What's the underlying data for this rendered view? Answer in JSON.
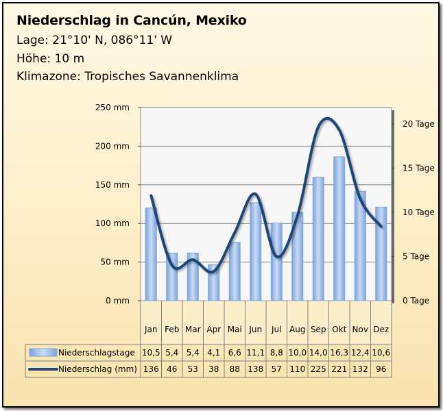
{
  "header": {
    "title": "Niederschlag in Cancún, Mexiko",
    "location": "Lage: 21°10' N, 086°11' W",
    "elevation": "Höhe: 10 m",
    "climate_zone": "Klimazone: Tropisches Savannenklima"
  },
  "colors": {
    "bar": "#9dbde8",
    "bar_edge": "#7ea4db",
    "line": "#1f4778",
    "grid": "#7f7f7f",
    "plot_bg": "#f7f7f7"
  },
  "chart_data": {
    "type": "bar",
    "title": "Niederschlag in Cancún, Mexiko",
    "categories": [
      "Jan",
      "Feb",
      "Mar",
      "Apr",
      "Mai",
      "Jun",
      "Jul",
      "Aug",
      "Sep",
      "Okt",
      "Nov",
      "Dez"
    ],
    "series": [
      {
        "name": "Niederschlagstage",
        "type": "bar",
        "axis": "right",
        "display": [
          "10,5",
          "5,4",
          "5,4",
          "4,1",
          "6,6",
          "11,1",
          "8,8",
          "10,0",
          "14,0",
          "16,3",
          "12,4",
          "10,6"
        ],
        "values": [
          10.5,
          5.4,
          5.4,
          4.1,
          6.6,
          11.1,
          8.8,
          10.0,
          14.0,
          16.3,
          12.4,
          10.6
        ]
      },
      {
        "name": "Niederschlag (mm)",
        "type": "line",
        "axis": "left",
        "display": [
          "136",
          "46",
          "53",
          "38",
          "88",
          "138",
          "57",
          "110",
          "225",
          "221",
          "132",
          "96"
        ],
        "values": [
          136,
          46,
          53,
          38,
          88,
          138,
          57,
          110,
          225,
          221,
          132,
          96
        ]
      }
    ],
    "y_left": {
      "ticks": [
        "0 mm",
        "50 mm",
        "100 mm",
        "150 mm",
        "200 mm",
        "250 mm"
      ],
      "range": [
        0,
        250
      ]
    },
    "y_right": {
      "ticks": [
        "0 Tage",
        "5 Tage",
        "10 Tage",
        "15 Tage",
        "20 Tage"
      ],
      "range": [
        0,
        21.875
      ]
    },
    "grid": true,
    "legend": "data-table"
  }
}
